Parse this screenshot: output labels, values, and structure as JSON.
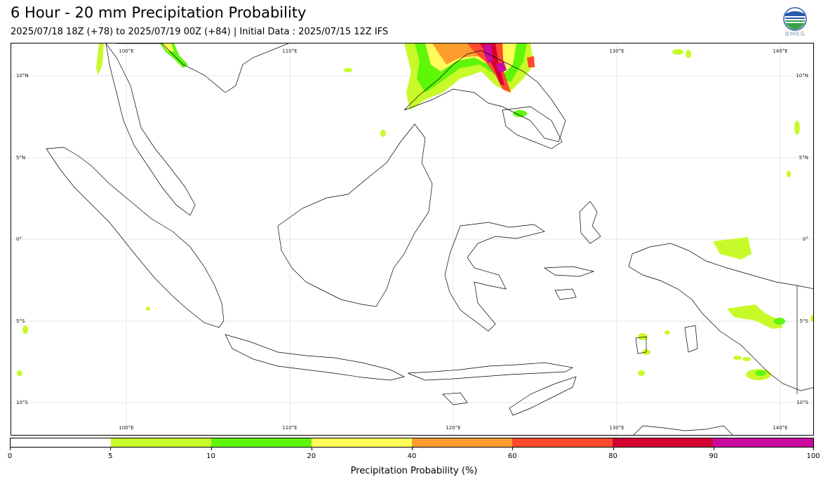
{
  "header": {
    "title": "6 Hour - 20 mm Precipitation Probability",
    "subtitle": "2025/07/18 18Z (+78) to 2025/07/19 00Z (+84) | Initial Data : 2025/07/15 12Z IFS",
    "logo_text": "BMKG"
  },
  "map": {
    "lon_labels": [
      "100°E",
      "110°E",
      "120°E",
      "130°E",
      "140°E"
    ],
    "lat_labels": [
      "10°N",
      "5°N",
      "0°",
      "5°S",
      "10°S"
    ],
    "colors": {
      "land_outline": "#000000",
      "grid": "#e6e6e6"
    }
  },
  "colorbar": {
    "label": "Precipitation Probability (%)",
    "ticks": [
      "0",
      "5",
      "10",
      "20",
      "40",
      "60",
      "80",
      "90",
      "100"
    ],
    "colors": [
      "#ffffff",
      "#c8fa2a",
      "#5ef70a",
      "#fffc5a",
      "#ff9c2e",
      "#ff4a2e",
      "#d4002f",
      "#cc0aa0"
    ]
  }
}
